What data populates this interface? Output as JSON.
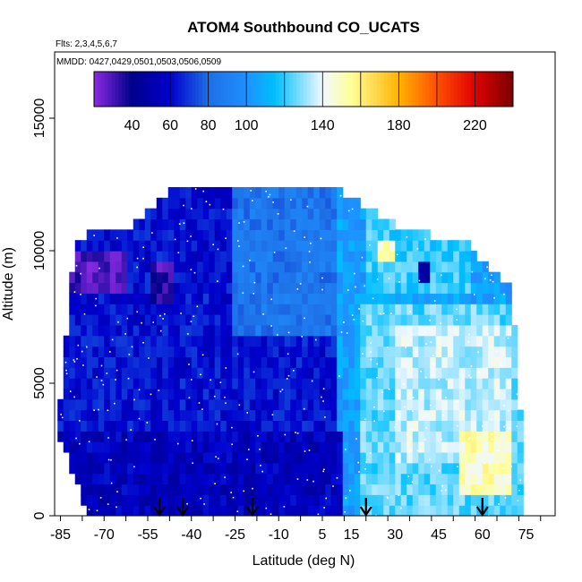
{
  "chart_data": {
    "type": "heatmap",
    "title": "ATOM4 Southbound CO_UCATS",
    "flights_label": "Flts: 2,3,4,5,6,7",
    "mmdd_label": "MMDD: 0427,0429,0501,0503,0506,0509",
    "xlabel": "Latitude (deg N)",
    "ylabel": "Altitude (m)",
    "xlim": [
      -87,
      85
    ],
    "ylim": [
      0,
      17500
    ],
    "x_ticks": [
      -85,
      -70,
      -55,
      -40,
      -25,
      -10,
      5,
      15,
      30,
      45,
      60,
      75
    ],
    "x_tick_labels": [
      "-85",
      "-70",
      "-55",
      "-40",
      "-25",
      "-10",
      "5",
      "15",
      "30",
      "45",
      "60",
      "75"
    ],
    "y_ticks": [
      0,
      5000,
      10000,
      15000
    ],
    "y_tick_labels": [
      "0",
      "5000",
      "10000",
      "15000"
    ],
    "colorbar": {
      "range": [
        20,
        240
      ],
      "ticks": [
        40,
        60,
        80,
        100,
        140,
        180,
        220
      ],
      "tick_labels": [
        "40",
        "60",
        "80",
        "100",
        "140",
        "180",
        "220"
      ],
      "stops": [
        {
          "v": 20,
          "c": "#8a2be2"
        },
        {
          "v": 40,
          "c": "#00008b"
        },
        {
          "v": 60,
          "c": "#0000cd"
        },
        {
          "v": 80,
          "c": "#1e6fe6"
        },
        {
          "v": 100,
          "c": "#1e90ff"
        },
        {
          "v": 115,
          "c": "#00bfff"
        },
        {
          "v": 140,
          "c": "#f0f8ff"
        },
        {
          "v": 155,
          "c": "#ffff99"
        },
        {
          "v": 180,
          "c": "#ffb300"
        },
        {
          "v": 200,
          "c": "#ff5000"
        },
        {
          "v": 220,
          "c": "#e00000"
        },
        {
          "v": 240,
          "c": "#7a0000"
        }
      ]
    },
    "arrow_latitudes": [
      -51,
      -43,
      -19,
      20,
      60
    ],
    "coverage": {
      "lat_min": -86,
      "lat_max": 73,
      "alt_top_by_lat": [
        {
          "lat": -86,
          "alt": 3000
        },
        {
          "lat": -80,
          "alt": 10500
        },
        {
          "lat": -60,
          "alt": 11000
        },
        {
          "lat": -45,
          "alt": 12400
        },
        {
          "lat": 10,
          "alt": 12400
        },
        {
          "lat": 30,
          "alt": 11000
        },
        {
          "lat": 55,
          "alt": 10200
        },
        {
          "lat": 70,
          "alt": 8500
        },
        {
          "lat": 73,
          "alt": 4000
        }
      ],
      "alt_bottom_by_lat": [
        {
          "lat": -86,
          "alt": 3000
        },
        {
          "lat": -80,
          "alt": 1500
        },
        {
          "lat": -75,
          "alt": 0
        },
        {
          "lat": 73,
          "alt": 0
        }
      ]
    },
    "regions": [
      {
        "lat_range": [
          -86,
          10
        ],
        "alt_range": [
          0,
          12400
        ],
        "value": 62
      },
      {
        "lat_range": [
          10,
          73
        ],
        "alt_range": [
          0,
          12400
        ],
        "value": 105
      },
      {
        "lat_range": [
          -86,
          12
        ],
        "alt_range": [
          0,
          3000
        ],
        "value": 55
      },
      {
        "lat_range": [
          18,
          73
        ],
        "alt_range": [
          0,
          8000
        ],
        "value": 125
      },
      {
        "lat_range": [
          30,
          70
        ],
        "alt_range": [
          2000,
          7000
        ],
        "value": 135
      },
      {
        "lat_range": [
          52,
          70
        ],
        "alt_range": [
          1000,
          3000
        ],
        "value": 150
      },
      {
        "lat_range": [
          -84,
          -62
        ],
        "alt_range": [
          8500,
          10000
        ],
        "value": 30
      },
      {
        "lat_range": [
          -54,
          -46
        ],
        "alt_range": [
          8200,
          9700
        ],
        "value": 32
      },
      {
        "lat_range": [
          -25,
          10
        ],
        "alt_range": [
          7000,
          12400
        ],
        "value": 85
      },
      {
        "lat_range": [
          20,
          55
        ],
        "alt_range": [
          8500,
          11500
        ],
        "value": 120
      },
      {
        "lat_range": [
          25,
          30
        ],
        "alt_range": [
          9500,
          10500
        ],
        "value": 150
      },
      {
        "lat_range": [
          38,
          42
        ],
        "alt_range": [
          8800,
          9400
        ],
        "value": 45
      }
    ]
  }
}
